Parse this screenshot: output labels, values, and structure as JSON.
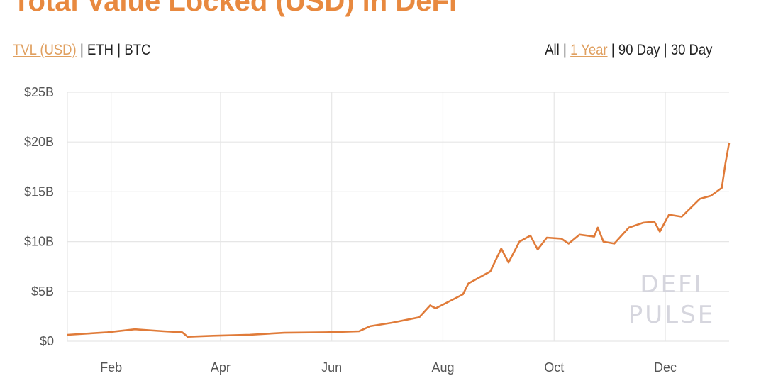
{
  "title": "Total Value Locked (USD) in DeFi",
  "metric_tabs": [
    {
      "label": "TVL (USD)",
      "active": true
    },
    {
      "label": "ETH",
      "active": false
    },
    {
      "label": "BTC",
      "active": false
    }
  ],
  "range_tabs": [
    {
      "label": "All",
      "active": false
    },
    {
      "label": "1 Year",
      "active": true
    },
    {
      "label": "90 Day",
      "active": false
    },
    {
      "label": "30 Day",
      "active": false
    }
  ],
  "separator": "|",
  "watermark": {
    "line1": "DEFI",
    "line2": "PULSE"
  },
  "colors": {
    "line": "#e07b39",
    "title": "#e8893f",
    "active_tab": "#e0a060",
    "grid": "#e6e6e6"
  },
  "chart_data": {
    "type": "line",
    "title": "Total Value Locked (USD) in DeFi",
    "xlabel": "",
    "ylabel": "",
    "ylim": [
      0,
      25
    ],
    "xlim": [
      "2020-01-08",
      "2021-01-05"
    ],
    "grid": true,
    "y_ticks": [
      {
        "value": 0,
        "label": "$0"
      },
      {
        "value": 5,
        "label": "$5B"
      },
      {
        "value": 10,
        "label": "$10B"
      },
      {
        "value": 15,
        "label": "$15B"
      },
      {
        "value": 20,
        "label": "$20B"
      },
      {
        "value": 25,
        "label": "$25B"
      }
    ],
    "x_ticks": [
      {
        "value": "2020-02-01",
        "label": "Feb"
      },
      {
        "value": "2020-04-01",
        "label": "Apr"
      },
      {
        "value": "2020-06-01",
        "label": "Jun"
      },
      {
        "value": "2020-08-01",
        "label": "Aug"
      },
      {
        "value": "2020-10-01",
        "label": "Oct"
      },
      {
        "value": "2020-12-01",
        "label": "Dec"
      }
    ],
    "series": [
      {
        "unit": "USD billions",
        "points": [
          [
            "2020-01-08",
            0.64
          ],
          [
            "2020-01-30",
            0.9
          ],
          [
            "2020-02-14",
            1.2
          ],
          [
            "2020-03-01",
            1.0
          ],
          [
            "2020-03-11",
            0.9
          ],
          [
            "2020-03-14",
            0.45
          ],
          [
            "2020-03-28",
            0.55
          ],
          [
            "2020-04-17",
            0.65
          ],
          [
            "2020-05-06",
            0.85
          ],
          [
            "2020-05-29",
            0.9
          ],
          [
            "2020-06-16",
            1.0
          ],
          [
            "2020-06-22",
            1.5
          ],
          [
            "2020-07-04",
            1.85
          ],
          [
            "2020-07-19",
            2.4
          ],
          [
            "2020-07-25",
            3.6
          ],
          [
            "2020-07-28",
            3.3
          ],
          [
            "2020-08-12",
            4.7
          ],
          [
            "2020-08-15",
            5.8
          ],
          [
            "2020-08-27",
            7.0
          ],
          [
            "2020-09-02",
            9.3
          ],
          [
            "2020-09-06",
            7.9
          ],
          [
            "2020-09-12",
            10.0
          ],
          [
            "2020-09-18",
            10.6
          ],
          [
            "2020-09-22",
            9.2
          ],
          [
            "2020-09-27",
            10.4
          ],
          [
            "2020-10-05",
            10.3
          ],
          [
            "2020-10-09",
            9.8
          ],
          [
            "2020-10-15",
            10.7
          ],
          [
            "2020-10-23",
            10.5
          ],
          [
            "2020-10-25",
            11.4
          ],
          [
            "2020-10-28",
            10.0
          ],
          [
            "2020-11-03",
            9.8
          ],
          [
            "2020-11-11",
            11.4
          ],
          [
            "2020-11-19",
            11.9
          ],
          [
            "2020-11-25",
            12.0
          ],
          [
            "2020-11-28",
            11.0
          ],
          [
            "2020-12-03",
            12.7
          ],
          [
            "2020-12-10",
            12.5
          ],
          [
            "2020-12-20",
            14.3
          ],
          [
            "2020-12-26",
            14.6
          ],
          [
            "2021-01-01",
            15.4
          ],
          [
            "2021-01-03",
            17.9
          ],
          [
            "2021-01-05",
            19.9
          ]
        ]
      }
    ]
  }
}
